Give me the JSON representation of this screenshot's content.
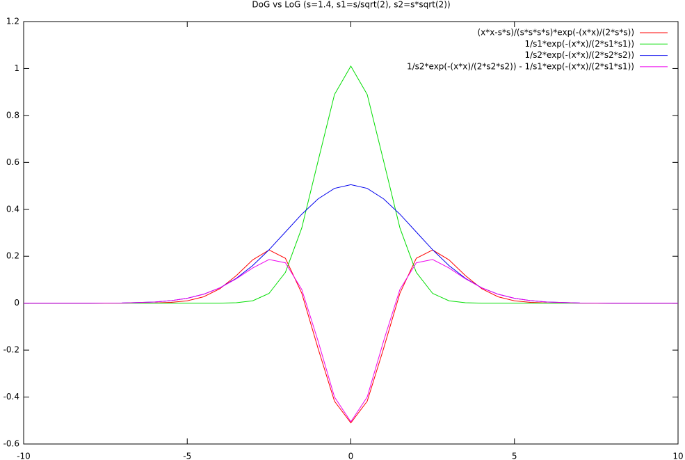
{
  "chart_data": {
    "type": "line",
    "title": "DoG vs LoG (s=1.4, s1=s/sqrt(2), s2=s*sqrt(2))",
    "x": [
      -10,
      -9,
      -8,
      -7,
      -6,
      -5.5,
      -5,
      -4.5,
      -4,
      -3.5,
      -3,
      -2.5,
      -2,
      -1.5,
      -1,
      -0.5,
      0,
      0.5,
      1,
      1.5,
      2,
      2.5,
      3,
      3.5,
      4,
      4.5,
      5,
      5.5,
      6,
      7,
      8,
      9,
      10
    ],
    "series": [
      {
        "name": "(x*x-s*s)/(s*s*s*s)*exp(-(x*x)/(2*s*s))",
        "color": "#ff0000",
        "values": [
          0,
          0,
          0,
          0,
          0.0009,
          0.0033,
          0.0102,
          0.0272,
          0.0617,
          0.1177,
          0.1845,
          0.2267,
          0.1914,
          0.0425,
          -0.1936,
          -0.4176,
          -0.5102,
          -0.4176,
          -0.1936,
          0.0425,
          0.1914,
          0.2267,
          0.1845,
          0.1177,
          0.0617,
          0.0272,
          0.0102,
          0.0033,
          0.0009,
          0,
          0,
          0,
          0
        ]
      },
      {
        "name": "1/s1*exp(-(x*x)/(2*s1*s1))",
        "color": "#00dd00",
        "values": [
          0,
          0,
          0,
          0,
          0,
          0,
          0,
          0,
          0.0003,
          0.0019,
          0.0102,
          0.0416,
          0.1312,
          0.3205,
          0.6065,
          0.8892,
          1.0102,
          0.8892,
          0.6065,
          0.3205,
          0.1312,
          0.0416,
          0.0102,
          0.0019,
          0.0003,
          0,
          0,
          0,
          0,
          0,
          0,
          0,
          0
        ]
      },
      {
        "name": "1/s2*exp(-(x*x)/(2*s2*s2))",
        "color": "#0000ee",
        "values": [
          0,
          0,
          0.0001,
          0.001,
          0.0051,
          0.0107,
          0.0208,
          0.0382,
          0.0656,
          0.1059,
          0.1603,
          0.2276,
          0.3033,
          0.3791,
          0.4446,
          0.4892,
          0.5051,
          0.4892,
          0.4446,
          0.3791,
          0.3033,
          0.2276,
          0.1603,
          0.1059,
          0.0656,
          0.0382,
          0.0208,
          0.0107,
          0.0051,
          0.001,
          0.0001,
          0,
          0
        ]
      },
      {
        "name": "1/s2*exp(-(x*x)/(2*s2*s2)) - 1/s1*exp(-(x*x)/(2*s1*s1))",
        "color": "#ee00ee",
        "values": [
          0,
          0,
          0.0001,
          0.001,
          0.0051,
          0.0107,
          0.0208,
          0.0382,
          0.0653,
          0.104,
          0.1501,
          0.186,
          0.1721,
          0.0586,
          -0.1619,
          -0.4,
          -0.5051,
          -0.4,
          -0.1619,
          0.0586,
          0.1721,
          0.186,
          0.1501,
          0.104,
          0.0653,
          0.0382,
          0.0208,
          0.0107,
          0.0051,
          0.001,
          0.0001,
          0,
          0
        ]
      }
    ],
    "xlim": [
      -10,
      10
    ],
    "xticks": [
      -10,
      -5,
      0,
      5,
      10
    ],
    "ylim": [
      -0.6,
      1.2
    ],
    "yticks": [
      -0.6,
      -0.4,
      -0.2,
      0,
      0.2,
      0.4,
      0.6,
      0.8,
      1,
      1.2
    ],
    "legend": "top-right"
  }
}
